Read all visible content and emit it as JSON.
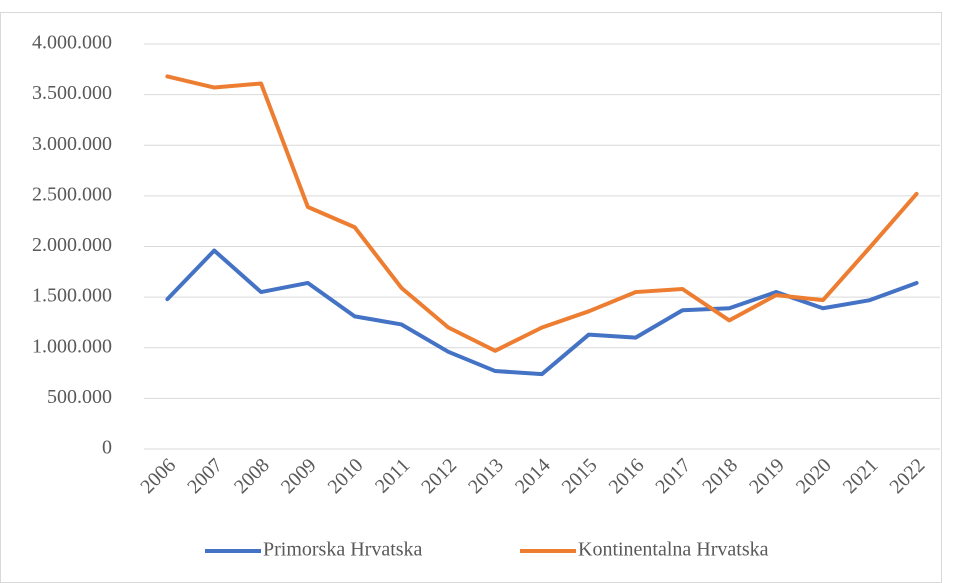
{
  "chart_data": {
    "type": "line",
    "categories": [
      "2006",
      "2007",
      "2008",
      "2009",
      "2010",
      "2011",
      "2012",
      "2013",
      "2014",
      "2015",
      "2016",
      "2017",
      "2018",
      "2019",
      "2020",
      "2021",
      "2022"
    ],
    "series": [
      {
        "name": "Primorska Hrvatska",
        "color": "#4472c4",
        "values": [
          1480000,
          1960000,
          1550000,
          1640000,
          1310000,
          1230000,
          960000,
          770000,
          740000,
          1130000,
          1100000,
          1370000,
          1390000,
          1550000,
          1390000,
          1470000,
          1640000
        ]
      },
      {
        "name": "Kontinentalna Hrvatska",
        "color": "#ed7d31",
        "values": [
          3680000,
          3570000,
          3610000,
          2390000,
          2190000,
          1590000,
          1200000,
          970000,
          1200000,
          1360000,
          1550000,
          1580000,
          1270000,
          1520000,
          1470000,
          1990000,
          2520000
        ]
      }
    ],
    "ylim": [
      0,
      4000000
    ],
    "yticks": [
      0,
      {
        "value": 500000,
        "label": "500.000"
      },
      {
        "value": 1000000,
        "label": "1.000.000"
      },
      {
        "value": 1500000,
        "label": "1.500.000"
      },
      {
        "value": 2000000,
        "label": "2.000.000"
      },
      {
        "value": 2500000,
        "label": "2.500.000"
      },
      {
        "value": 3000000,
        "label": "3.000.000"
      },
      {
        "value": 3500000,
        "label": "3.500.000"
      },
      {
        "value": 4000000,
        "label": "4.000.000"
      }
    ],
    "grid": true,
    "legend": "bottom"
  }
}
